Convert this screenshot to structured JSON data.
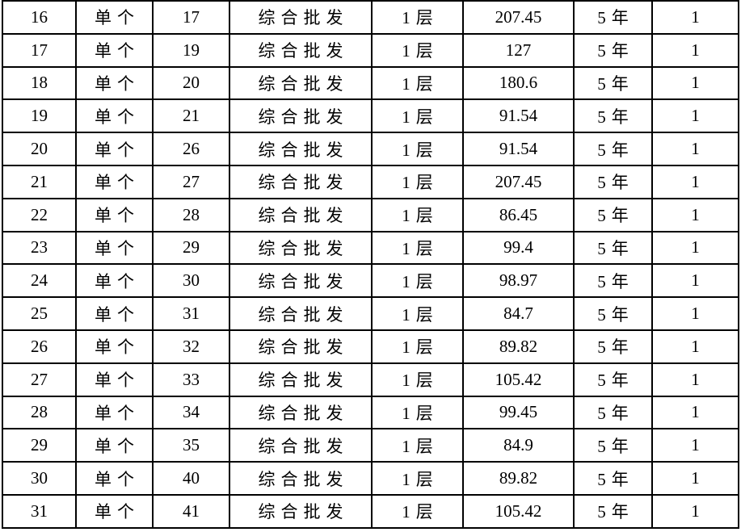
{
  "colors": {
    "red_text": "#e02b2b",
    "border": "#000000",
    "background": "#ffffff"
  },
  "table": {
    "description-of-columns": [
      "row_no",
      "type",
      "number",
      "category",
      "floor",
      "value",
      "term",
      "count"
    ],
    "rows": [
      {
        "row_no": "16",
        "type": "单个",
        "number": "17",
        "category": "综合批发",
        "floor": "1层",
        "value": "207.45",
        "term": "5年",
        "count": "1"
      },
      {
        "row_no": "17",
        "type": "单个",
        "number": "19",
        "category": "综合批发",
        "floor": "1层",
        "value": "127",
        "term": "5年",
        "count": "1"
      },
      {
        "row_no": "18",
        "type": "单个",
        "number": "20",
        "category": "综合批发",
        "floor": "1层",
        "value": "180.6",
        "term": "5年",
        "count": "1"
      },
      {
        "row_no": "19",
        "type": "单个",
        "number": "21",
        "category": "综合批发",
        "floor": "1层",
        "value": "91.54",
        "term": "5年",
        "count": "1"
      },
      {
        "row_no": "20",
        "type": "单个",
        "number": "26",
        "category": "综合批发",
        "floor": "1层",
        "value": "91.54",
        "term": "5年",
        "count": "1"
      },
      {
        "row_no": "21",
        "type": "单个",
        "number": "27",
        "category": "综合批发",
        "floor": "1层",
        "value": "207.45",
        "term": "5年",
        "count": "1"
      },
      {
        "row_no": "22",
        "type": "单个",
        "number": "28",
        "category": "综合批发",
        "floor": "1层",
        "value": "86.45",
        "term": "5年",
        "count": "1"
      },
      {
        "row_no": "23",
        "type": "单个",
        "number": "29",
        "category": "综合批发",
        "floor": "1层",
        "value": "99.4",
        "term": "5年",
        "count": "1"
      },
      {
        "row_no": "24",
        "type": "单个",
        "number": "30",
        "category": "综合批发",
        "floor": "1层",
        "value": "98.97",
        "term": "5年",
        "count": "1"
      },
      {
        "row_no": "25",
        "type": "单个",
        "number": "31",
        "category": "综合批发",
        "floor": "1层",
        "value": "84.7",
        "term": "5年",
        "count": "1"
      },
      {
        "row_no": "26",
        "type": "单个",
        "number": "32",
        "category": "综合批发",
        "floor": "1层",
        "value": "89.82",
        "term": "5年",
        "count": "1"
      },
      {
        "row_no": "27",
        "type": "单个",
        "number": "33",
        "category": "综合批发",
        "floor": "1层",
        "value": "105.42",
        "term": "5年",
        "count": "1"
      },
      {
        "row_no": "28",
        "type": "单个",
        "number": "34",
        "category": "综合批发",
        "floor": "1层",
        "value": "99.45",
        "term": "5年",
        "count": "1"
      },
      {
        "row_no": "29",
        "type": "单个",
        "number": "35",
        "category": "综合批发",
        "floor": "1层",
        "value": "84.9",
        "term": "5年",
        "count": "1"
      },
      {
        "row_no": "30",
        "type": "单个",
        "number": "40",
        "category": "综合批发",
        "floor": "1层",
        "value": "89.82",
        "term": "5年",
        "count": "1"
      },
      {
        "row_no": "31",
        "type": "单个",
        "number": "41",
        "category": "综合批发",
        "floor": "1层",
        "value": "105.42",
        "term": "5年",
        "count": "1"
      }
    ]
  }
}
